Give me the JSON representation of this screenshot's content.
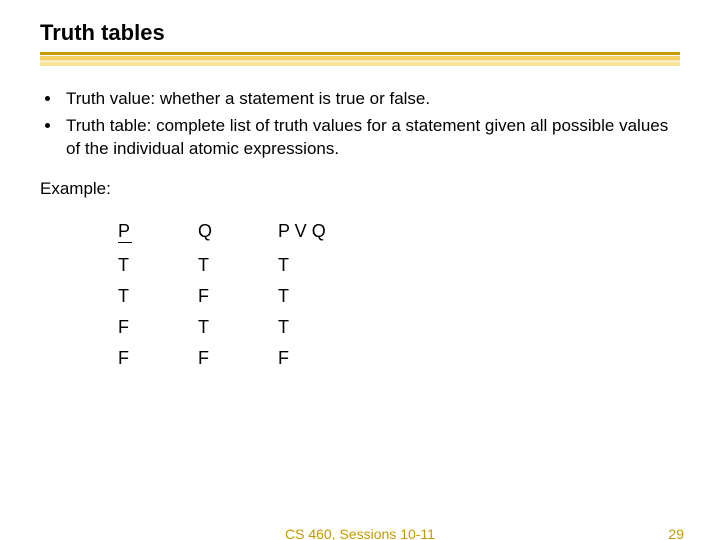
{
  "title": "Truth tables",
  "bullets": [
    "Truth value: whether a statement is true or false.",
    "Truth table: complete list of truth values for a statement given all possible values of the individual atomic expressions."
  ],
  "example_label": "Example:",
  "truth_table": {
    "columns": [
      "P",
      "Q",
      "P V Q"
    ],
    "rows": [
      [
        "T",
        "T",
        "T"
      ],
      [
        "T",
        "F",
        "T"
      ],
      [
        "F",
        "T",
        "T"
      ],
      [
        "F",
        "F",
        "F"
      ]
    ]
  },
  "footer": {
    "course": "CS 460,  Sessions 10-11",
    "page": "29"
  },
  "colors": {
    "underline_dark": "#cc9900",
    "underline_light": "#f2c94c",
    "footer_text": "#c49a00",
    "text": "#000000",
    "background": "#ffffff"
  },
  "font_sizes": {
    "title": 22,
    "body": 17,
    "table": 18,
    "footer": 14
  }
}
